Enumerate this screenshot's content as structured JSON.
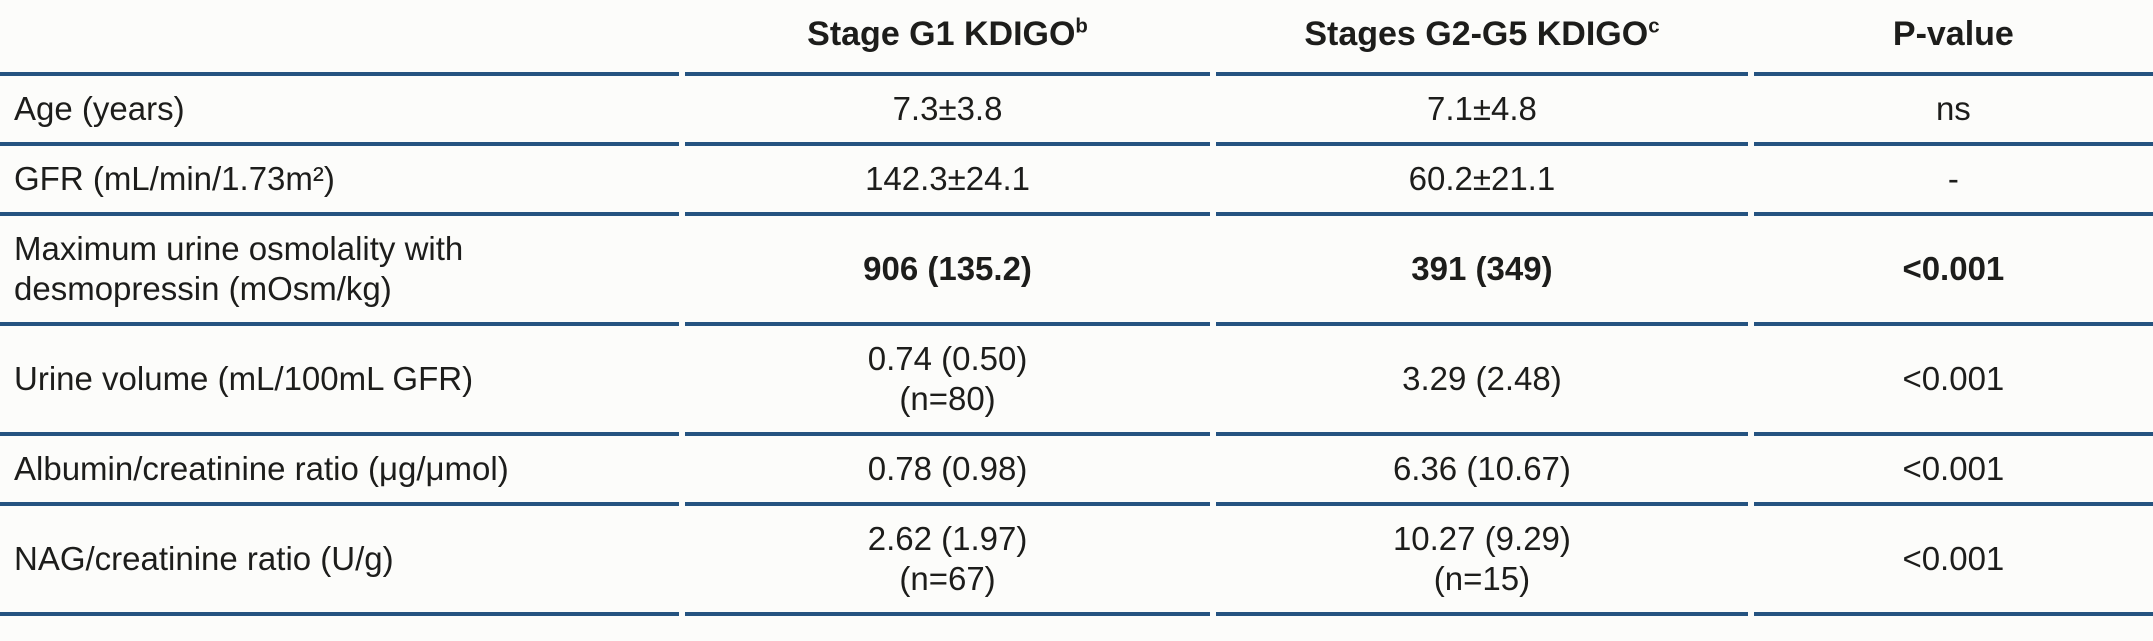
{
  "theme": {
    "rule_color": "#255380",
    "text_color": "#1d1d1b",
    "background": "#fcfcfa"
  },
  "table": {
    "headers": {
      "label": "",
      "g1": {
        "text": "Stage G1 KDIGO",
        "sup": "b"
      },
      "g2g5": {
        "text": "Stages G2-G5 KDIGO",
        "sup": "c"
      },
      "p": "P-value"
    },
    "rows": [
      {
        "label": "Age (years)",
        "g1": "7.3±3.8",
        "g2g5": "7.1±4.8",
        "p": "ns"
      },
      {
        "label": "GFR (mL/min/1.73m²)",
        "g1": "142.3±24.1",
        "g2g5": "60.2±21.1",
        "p": "-"
      },
      {
        "label": "Maximum urine osmolality with\ndesmopressin (mOsm/kg)",
        "g1": "906 (135.2)",
        "g2g5": "391 (349)",
        "p": "<0.001"
      },
      {
        "label": "Urine volume (mL/100mL GFR)",
        "g1": "0.74 (0.50)\n(n=80)",
        "g2g5": "3.29 (2.48)",
        "p": "<0.001"
      },
      {
        "label": "Albumin/creatinine ratio (μg/μmol)",
        "g1": "0.78 (0.98)",
        "g2g5": "6.36 (10.67)",
        "p": "<0.001"
      },
      {
        "label": "NAG/creatinine ratio (U/g)",
        "g1": "2.62 (1.97)\n(n=67)",
        "g2g5": "10.27 (9.29)\n(n=15)",
        "p": "<0.001"
      }
    ]
  }
}
